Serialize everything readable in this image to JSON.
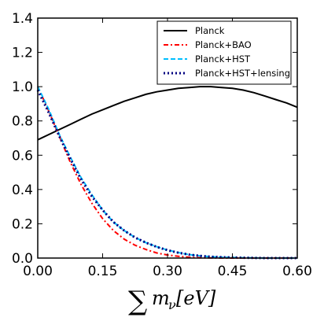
{
  "chart_data": {
    "type": "line",
    "title": "",
    "xlabel": "∑m",
    "xlabel_sub": "ν",
    "xlabel_unit": "[eV]",
    "ylabel": "",
    "xlim": [
      0.0,
      0.6
    ],
    "ylim": [
      0.0,
      1.4
    ],
    "xticks": [
      "0.00",
      "0.15",
      "0.30",
      "0.45",
      "0.60"
    ],
    "xtick_values": [
      0.0,
      0.15,
      0.3,
      0.45,
      0.6
    ],
    "yticks": [
      "0.0",
      "0.2",
      "0.4",
      "0.6",
      "0.8",
      "1.0",
      "1.2",
      "1.4"
    ],
    "ytick_values": [
      0.0,
      0.2,
      0.4,
      0.6,
      0.8,
      1.0,
      1.2,
      1.4
    ],
    "grid": false,
    "legend_position": "top-right",
    "x": [
      0.0,
      0.025,
      0.05,
      0.075,
      0.1,
      0.125,
      0.15,
      0.175,
      0.2,
      0.225,
      0.25,
      0.275,
      0.3,
      0.325,
      0.35,
      0.375,
      0.4,
      0.425,
      0.45,
      0.475,
      0.5,
      0.525,
      0.55,
      0.575,
      0.6
    ],
    "series": [
      {
        "name": "Planck",
        "color": "#000000",
        "dash": "solid",
        "values": [
          0.69,
          0.72,
          0.75,
          0.78,
          0.81,
          0.84,
          0.865,
          0.89,
          0.915,
          0.935,
          0.955,
          0.97,
          0.98,
          0.99,
          0.995,
          1.0,
          1.0,
          0.995,
          0.99,
          0.98,
          0.965,
          0.945,
          0.925,
          0.905,
          0.88
        ]
      },
      {
        "name": "Planck+BAO",
        "color": "#ff0000",
        "dash": "dashdot",
        "values": [
          1.0,
          0.86,
          0.71,
          0.56,
          0.43,
          0.32,
          0.23,
          0.16,
          0.11,
          0.075,
          0.05,
          0.03,
          0.018,
          0.01,
          0.005,
          0.002,
          0.001,
          0.0,
          0.0,
          0.0,
          0.0,
          0.0,
          0.0,
          0.0,
          0.0
        ]
      },
      {
        "name": "Planck+HST",
        "color": "#00bfff",
        "dash": "dashed",
        "values": [
          1.0,
          0.87,
          0.72,
          0.59,
          0.47,
          0.37,
          0.28,
          0.21,
          0.16,
          0.12,
          0.09,
          0.066,
          0.047,
          0.032,
          0.02,
          0.013,
          0.008,
          0.005,
          0.003,
          0.002,
          0.001,
          0.0,
          0.0,
          0.0,
          0.0
        ]
      },
      {
        "name": "Planck+HST+lensing",
        "color": "#000080",
        "dash": "dotted",
        "values": [
          0.98,
          0.85,
          0.71,
          0.58,
          0.46,
          0.36,
          0.28,
          0.21,
          0.16,
          0.12,
          0.09,
          0.065,
          0.046,
          0.031,
          0.02,
          0.013,
          0.008,
          0.005,
          0.003,
          0.002,
          0.001,
          0.0,
          0.0,
          0.0,
          0.0
        ]
      }
    ]
  }
}
